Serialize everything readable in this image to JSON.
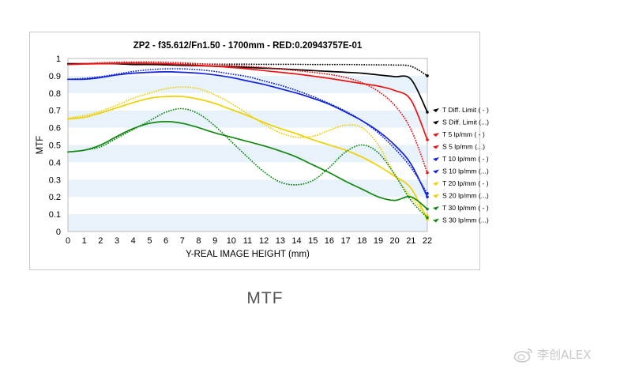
{
  "caption": "MTF",
  "watermark": "李创ALEX",
  "chart_data": {
    "type": "line",
    "title": "ZP2 - f35.612/Fn1.50 - 1700mm - RED:0.20943757E-01",
    "xlabel": "Y-REAL IMAGE HEIGHT (mm)",
    "ylabel": "MTF",
    "xlim": [
      0,
      22
    ],
    "ylim": [
      0,
      1
    ],
    "xticks": [
      "0",
      "1",
      "2",
      "3",
      "4",
      "5",
      "6",
      "7",
      "8",
      "9",
      "10",
      "11",
      "12",
      "13",
      "14",
      "15",
      "16",
      "17",
      "18",
      "19",
      "20",
      "21",
      "22"
    ],
    "yticks": [
      "0",
      "0.1",
      "0.2",
      "0.3",
      "0.4",
      "0.5",
      "0.6",
      "0.7",
      "0.8",
      "0.9",
      "1"
    ],
    "grid": "alternating horizontal bands",
    "legend_position": "right",
    "x": [
      0,
      1,
      2,
      3,
      4,
      5,
      6,
      7,
      8,
      9,
      10,
      11,
      12,
      13,
      14,
      15,
      16,
      17,
      18,
      19,
      20,
      21,
      22
    ],
    "series": [
      {
        "name": "T Diff. Limit ( - )",
        "color": "#000000",
        "style": "solid",
        "values": [
          0.97,
          0.97,
          0.97,
          0.97,
          0.965,
          0.965,
          0.963,
          0.96,
          0.958,
          0.955,
          0.952,
          0.948,
          0.944,
          0.94,
          0.935,
          0.93,
          0.925,
          0.92,
          0.915,
          0.905,
          0.895,
          0.88,
          0.69
        ]
      },
      {
        "name": "S Diff. Limit (...)",
        "color": "#000000",
        "style": "dotted",
        "values": [
          0.97,
          0.97,
          0.97,
          0.97,
          0.97,
          0.97,
          0.968,
          0.968,
          0.968,
          0.967,
          0.967,
          0.967,
          0.966,
          0.966,
          0.966,
          0.965,
          0.965,
          0.965,
          0.964,
          0.963,
          0.962,
          0.955,
          0.9
        ]
      },
      {
        "name": "T 5 lp/mm ( - )",
        "color": "#ee1111",
        "style": "solid",
        "values": [
          0.965,
          0.968,
          0.97,
          0.972,
          0.973,
          0.972,
          0.97,
          0.965,
          0.96,
          0.955,
          0.948,
          0.94,
          0.93,
          0.92,
          0.91,
          0.898,
          0.885,
          0.87,
          0.855,
          0.84,
          0.815,
          0.76,
          0.53
        ]
      },
      {
        "name": "S 5 lp/mm (...)",
        "color": "#ee1111",
        "style": "dotted",
        "values": [
          0.965,
          0.97,
          0.975,
          0.978,
          0.98,
          0.98,
          0.978,
          0.975,
          0.97,
          0.965,
          0.96,
          0.955,
          0.948,
          0.94,
          0.93,
          0.92,
          0.908,
          0.89,
          0.86,
          0.81,
          0.73,
          0.59,
          0.34
        ]
      },
      {
        "name": "T 10 lp/mm ( - )",
        "color": "#1122dd",
        "style": "solid",
        "values": [
          0.88,
          0.88,
          0.89,
          0.905,
          0.915,
          0.92,
          0.923,
          0.92,
          0.915,
          0.905,
          0.89,
          0.87,
          0.85,
          0.825,
          0.8,
          0.77,
          0.735,
          0.69,
          0.64,
          0.58,
          0.5,
          0.39,
          0.2
        ]
      },
      {
        "name": "S 10 lp/mm (...)",
        "color": "#1122dd",
        "style": "dotted",
        "values": [
          0.88,
          0.885,
          0.895,
          0.91,
          0.925,
          0.935,
          0.94,
          0.94,
          0.935,
          0.925,
          0.91,
          0.895,
          0.87,
          0.845,
          0.815,
          0.78,
          0.74,
          0.695,
          0.64,
          0.57,
          0.48,
          0.37,
          0.22
        ]
      },
      {
        "name": "T 20 lp/mm ( - )",
        "color": "#f0d000",
        "style": "solid",
        "values": [
          0.65,
          0.66,
          0.685,
          0.715,
          0.745,
          0.77,
          0.78,
          0.78,
          0.765,
          0.74,
          0.705,
          0.67,
          0.63,
          0.595,
          0.565,
          0.53,
          0.5,
          0.47,
          0.43,
          0.38,
          0.32,
          0.25,
          0.07
        ]
      },
      {
        "name": "S 20 lp/mm (...)",
        "color": "#f0d000",
        "style": "dotted",
        "values": [
          0.655,
          0.67,
          0.695,
          0.73,
          0.77,
          0.8,
          0.825,
          0.835,
          0.825,
          0.79,
          0.74,
          0.68,
          0.62,
          0.57,
          0.545,
          0.55,
          0.585,
          0.615,
          0.6,
          0.5,
          0.33,
          0.2,
          0.09
        ]
      },
      {
        "name": "T 30 lp/mm ( - )",
        "color": "#118811",
        "style": "solid",
        "values": [
          0.46,
          0.47,
          0.5,
          0.55,
          0.595,
          0.625,
          0.635,
          0.625,
          0.6,
          0.57,
          0.545,
          0.52,
          0.495,
          0.465,
          0.43,
          0.385,
          0.34,
          0.29,
          0.245,
          0.2,
          0.18,
          0.2,
          0.13
        ]
      },
      {
        "name": "S 30 lp/mm (...)",
        "color": "#118811",
        "style": "dotted",
        "values": [
          0.46,
          0.47,
          0.49,
          0.54,
          0.59,
          0.64,
          0.69,
          0.71,
          0.68,
          0.61,
          0.52,
          0.43,
          0.345,
          0.285,
          0.27,
          0.295,
          0.37,
          0.46,
          0.5,
          0.455,
          0.33,
          0.18,
          0.08
        ]
      }
    ]
  }
}
